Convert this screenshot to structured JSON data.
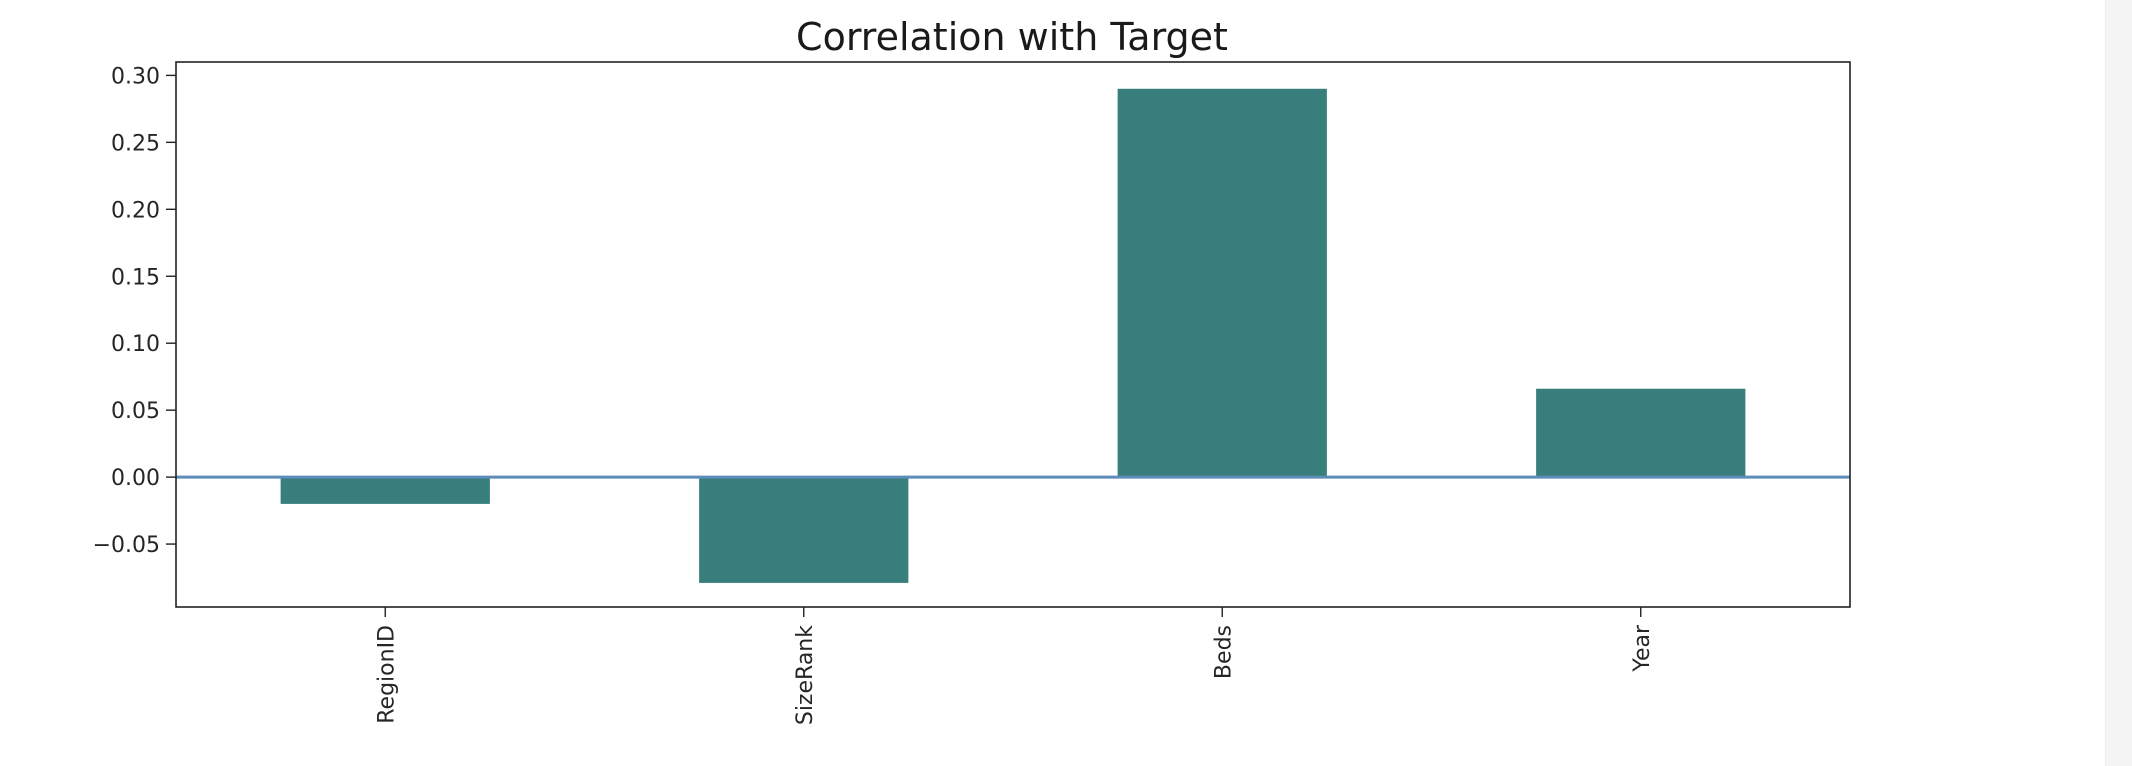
{
  "chart_data": {
    "type": "bar",
    "title": "Correlation with Target",
    "xlabel": "",
    "ylabel": "",
    "categories": [
      "RegionID",
      "SizeRank",
      "Beds",
      "Year"
    ],
    "values": [
      -0.02,
      -0.079,
      0.29,
      0.066
    ],
    "ylim": [
      -0.097,
      0.31
    ],
    "yticks": [
      0.3,
      0.25,
      0.2,
      0.15,
      0.1,
      0.05,
      0.0,
      -0.05
    ],
    "ytick_labels": [
      "0.30",
      "0.25",
      "0.20",
      "0.15",
      "0.10",
      "0.05",
      "0.00",
      "−0.05"
    ],
    "bar_color": "#377e7c",
    "zero_line_color": "#5b8db8",
    "grid": false,
    "legend": "none",
    "xtick_rotation": "vertical"
  }
}
